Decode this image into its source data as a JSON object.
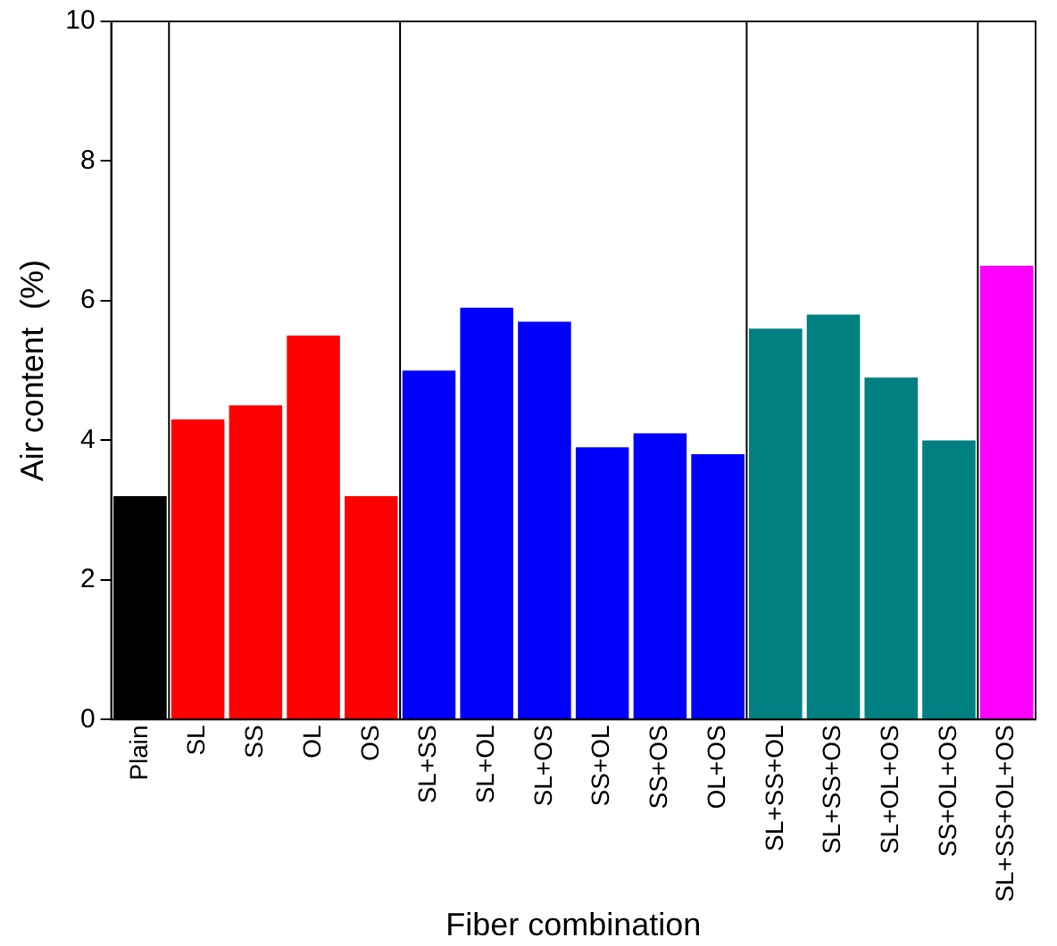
{
  "chart_data": {
    "type": "bar",
    "xlabel": "Fiber combination",
    "ylabel": "Air content  (%)",
    "categories": [
      "Plain",
      "SL",
      "SS",
      "OL",
      "OS",
      "SL+SS",
      "SL+OL",
      "SL+OS",
      "SS+OL",
      "SS+OS",
      "OL+OS",
      "SL+SS+OL",
      "SL+SS+OS",
      "SL+OL+OS",
      "SS+OL+OS",
      "SL+SS+OL+OS"
    ],
    "values": [
      3.2,
      4.3,
      4.5,
      5.5,
      3.2,
      5.0,
      5.9,
      5.7,
      3.9,
      4.1,
      3.8,
      5.6,
      5.8,
      4.9,
      4.0,
      6.5
    ],
    "colors": [
      "#000000",
      "#ff0000",
      "#ff0000",
      "#ff0000",
      "#ff0000",
      "#0000ff",
      "#0000ff",
      "#0000ff",
      "#0000ff",
      "#0000ff",
      "#0000ff",
      "#008080",
      "#008080",
      "#008080",
      "#008080",
      "#ff00ff"
    ],
    "ylim": [
      0,
      10
    ],
    "yticks": [
      0,
      2,
      4,
      6,
      8,
      10
    ],
    "grid": false,
    "legend": false
  }
}
